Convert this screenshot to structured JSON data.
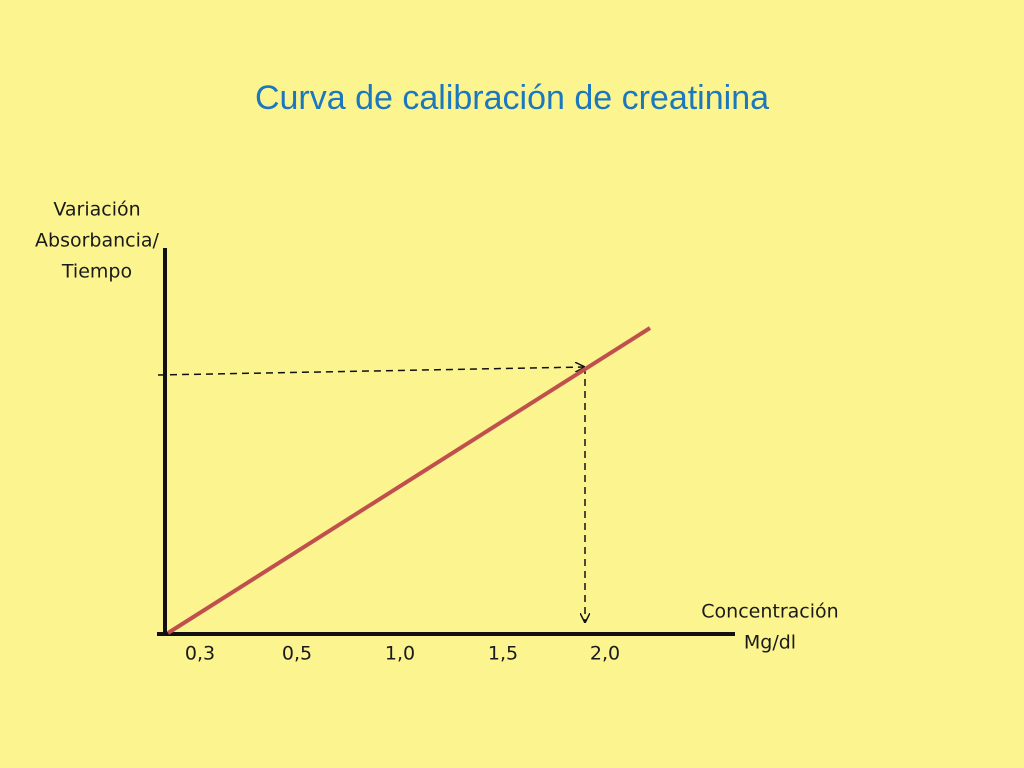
{
  "title": "Curva de calibración de creatinina",
  "y_axis_label": [
    "Variación",
    "Absorbancia/",
    "Tiempo"
  ],
  "x_axis_label": [
    "Concentración",
    "Mg/dl"
  ],
  "x_tick_labels": [
    "0,3",
    "0,5",
    "1,0",
    "1,5",
    "2,0"
  ]
}
